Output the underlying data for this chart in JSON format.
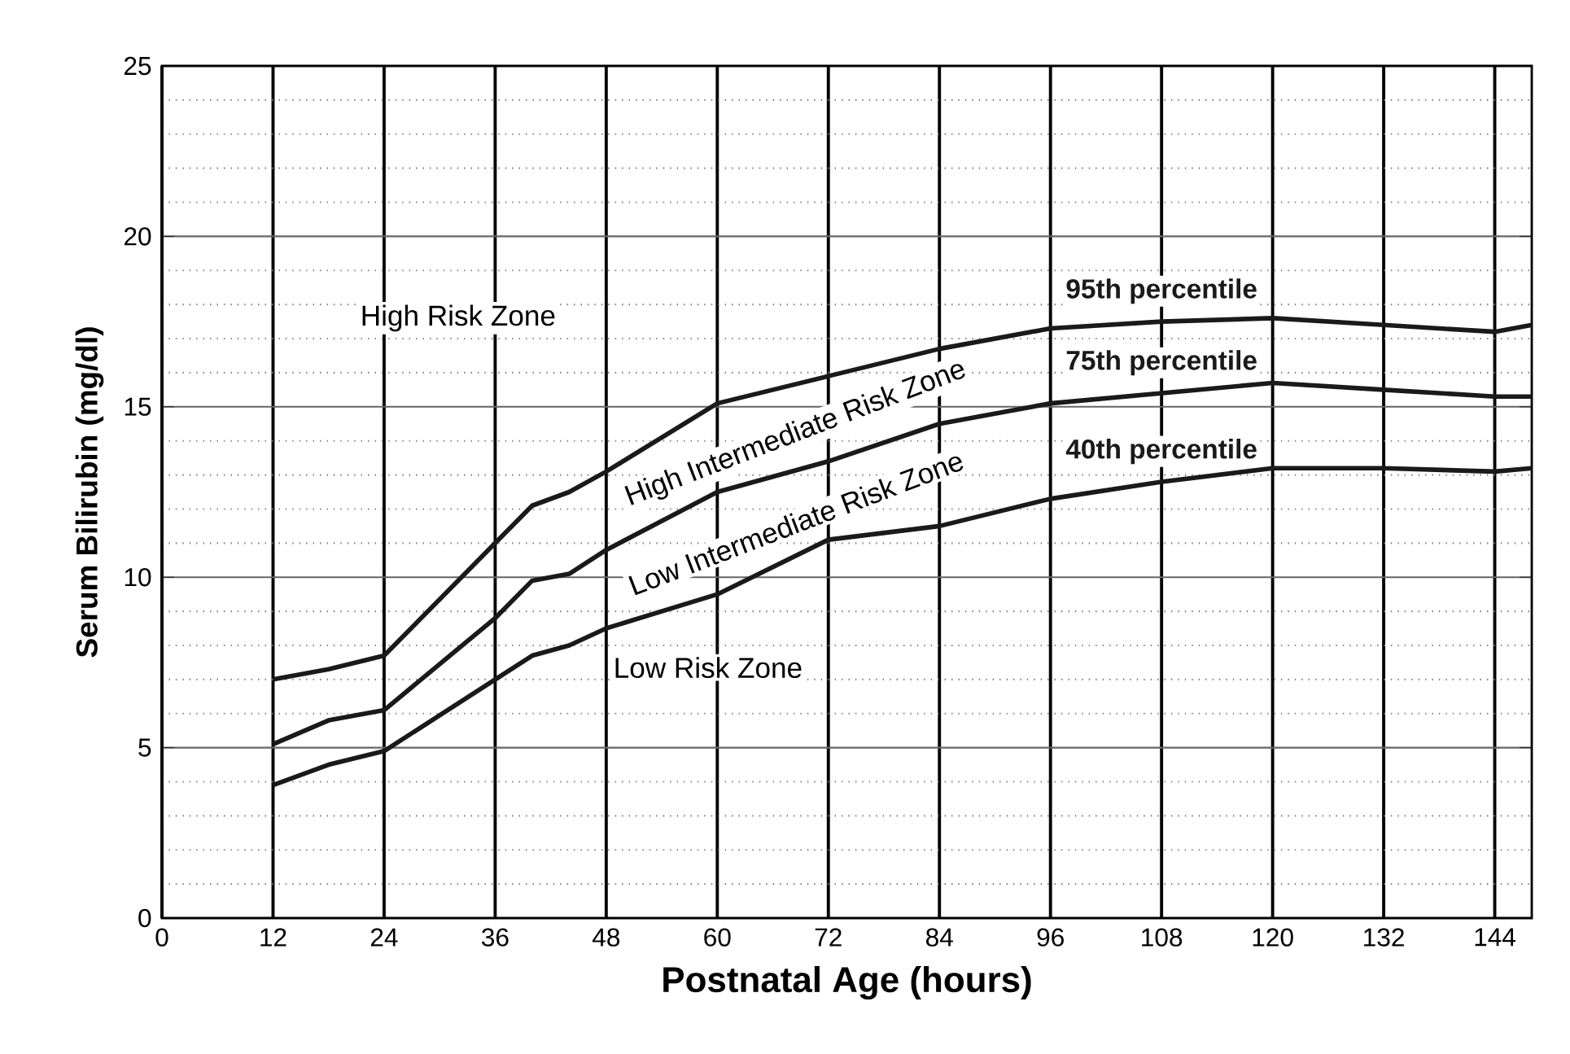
{
  "chart_data": {
    "type": "line",
    "xlabel": "Postnatal Age (hours)",
    "ylabel": "Serum Bilirubin (mg/dl)",
    "x": [
      12,
      18,
      24,
      36,
      40,
      44,
      48,
      60,
      72,
      84,
      96,
      108,
      120,
      132,
      144,
      148
    ],
    "series": [
      {
        "name": "95th percentile",
        "color": "#1a1a1a",
        "values": [
          7.0,
          7.3,
          7.7,
          11.0,
          12.1,
          12.5,
          13.1,
          15.1,
          15.9,
          16.7,
          17.3,
          17.5,
          17.6,
          17.4,
          17.2,
          17.4
        ]
      },
      {
        "name": "75th percentile",
        "color": "#1a1a1a",
        "values": [
          5.1,
          5.8,
          6.1,
          8.8,
          9.9,
          10.1,
          10.8,
          12.5,
          13.4,
          14.5,
          15.1,
          15.4,
          15.7,
          15.5,
          15.3,
          15.3
        ]
      },
      {
        "name": "40th percentile",
        "color": "#1a1a1a",
        "values": [
          3.9,
          4.5,
          4.9,
          7.0,
          7.7,
          8.0,
          8.5,
          9.5,
          11.1,
          11.5,
          12.3,
          12.8,
          13.2,
          13.2,
          13.1,
          13.2
        ]
      }
    ],
    "xlim": [
      0,
      148
    ],
    "ylim": [
      0,
      25
    ],
    "xticks": [
      0,
      12,
      24,
      36,
      48,
      60,
      72,
      84,
      96,
      108,
      120,
      132,
      144
    ],
    "yticks": [
      0,
      5,
      10,
      15,
      20,
      25
    ],
    "grid": true,
    "marker": "none",
    "line_style": "solid",
    "legend": false,
    "annotations": [
      "High Risk Zone",
      "High Intermediate Risk Zone",
      "Low Intermediate Risk Zone",
      "Low Risk Zone"
    ]
  }
}
